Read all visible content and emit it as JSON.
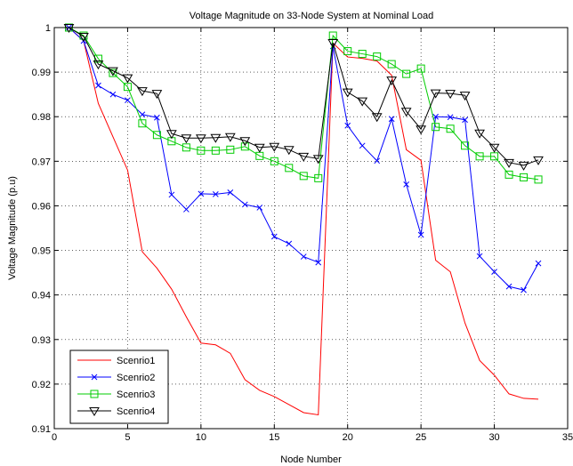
{
  "chart_data": {
    "type": "line",
    "title": "Voltage Magnitude on 33-Node System at Nominal Load",
    "xlabel": "Node Number",
    "ylabel": "Voltage Magnitude (p.u)",
    "xlim": [
      0,
      35
    ],
    "ylim": [
      0.91,
      1.0
    ],
    "xticks": [
      0,
      5,
      10,
      15,
      20,
      25,
      30,
      35
    ],
    "yticks": [
      0.91,
      0.92,
      0.93,
      0.94,
      0.95,
      0.96,
      0.97,
      0.98,
      0.99,
      1.0
    ],
    "xtick_labels": [
      "0",
      "5",
      "10",
      "15",
      "20",
      "25",
      "30",
      "35"
    ],
    "ytick_labels": [
      "0.91",
      "0.92",
      "0.93",
      "0.94",
      "0.95",
      "0.96",
      "0.97",
      "0.98",
      "0.99",
      "1"
    ],
    "grid": true,
    "legend_position": "bottom-left",
    "x": [
      1,
      2,
      3,
      4,
      5,
      6,
      7,
      8,
      9,
      10,
      11,
      12,
      13,
      14,
      15,
      16,
      17,
      18,
      19,
      20,
      21,
      22,
      23,
      24,
      25,
      26,
      27,
      28,
      29,
      30,
      31,
      32,
      33
    ],
    "series": [
      {
        "name": "Scenrio1",
        "color": "#ff0000",
        "marker": "none",
        "values": [
          1.0,
          0.997,
          0.983,
          0.9755,
          0.968,
          0.9497,
          0.946,
          0.9413,
          0.9351,
          0.9292,
          0.9288,
          0.9269,
          0.921,
          0.9186,
          0.9172,
          0.9154,
          0.9136,
          0.9131,
          0.9965,
          0.9934,
          0.9931,
          0.9925,
          0.9893,
          0.9726,
          0.9702,
          0.9478,
          0.9452,
          0.9337,
          0.9253,
          0.922,
          0.9178,
          0.9168,
          0.9166
        ]
      },
      {
        "name": "Scenrio2",
        "color": "#0000ff",
        "marker": "x",
        "values": [
          1.0,
          0.997,
          0.987,
          0.985,
          0.9837,
          0.9805,
          0.9798,
          0.9625,
          0.9592,
          0.9627,
          0.9626,
          0.963,
          0.9603,
          0.9596,
          0.9531,
          0.9515,
          0.9486,
          0.9473,
          0.9958,
          0.978,
          0.9735,
          0.9701,
          0.9795,
          0.9648,
          0.9535,
          0.98,
          0.9799,
          0.9793,
          0.9487,
          0.9452,
          0.9419,
          0.9411,
          0.9471
        ]
      },
      {
        "name": "Scenrio3",
        "color": "#00cc00",
        "marker": "square",
        "values": [
          1.0,
          0.9982,
          0.993,
          0.9898,
          0.9867,
          0.9785,
          0.9759,
          0.9745,
          0.9731,
          0.9724,
          0.9724,
          0.9726,
          0.9733,
          0.9712,
          0.97,
          0.9685,
          0.9667,
          0.9662,
          0.9982,
          0.9947,
          0.9941,
          0.9935,
          0.9918,
          0.9896,
          0.9908,
          0.9777,
          0.9773,
          0.9735,
          0.9711,
          0.9711,
          0.967,
          0.9664,
          0.9659
        ]
      },
      {
        "name": "Scenrio4",
        "color": "#000000",
        "marker": "triangle-down",
        "values": [
          1.0,
          0.998,
          0.9918,
          0.9903,
          0.9887,
          0.9858,
          0.9852,
          0.9762,
          0.9752,
          0.9752,
          0.9753,
          0.9755,
          0.9746,
          0.9731,
          0.9733,
          0.9726,
          0.9711,
          0.9706,
          0.9966,
          0.9855,
          0.9835,
          0.98,
          0.9882,
          0.9812,
          0.9772,
          0.9853,
          0.9852,
          0.9848,
          0.9763,
          0.9731,
          0.9697,
          0.9691,
          0.9703
        ]
      }
    ]
  }
}
